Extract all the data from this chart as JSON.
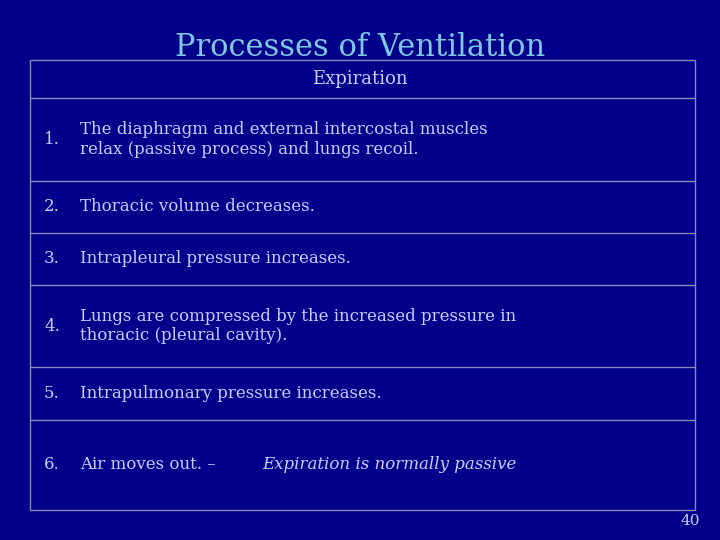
{
  "title": "Processes of Ventilation",
  "title_color": "#7EC8E3",
  "background_color": "#00008B",
  "table_border_color": "#8888BB",
  "text_color": "#CCCCFF",
  "header_text": "Expiration",
  "page_number": "40",
  "rows": [
    {
      "number": "1.",
      "text": "The diaphragm and external intercostal muscles\nrelax (passive process) and lungs recoil.",
      "italic_part": null
    },
    {
      "number": "2.",
      "text": "Thoracic volume decreases.",
      "italic_part": null
    },
    {
      "number": "3.",
      "text": "Intrapleural pressure increases.",
      "italic_part": null
    },
    {
      "number": "4.",
      "text": "Lungs are compressed by the increased pressure in\nthoracic (pleural cavity).",
      "italic_part": null
    },
    {
      "number": "5.",
      "text": "Intrapulmonary pressure increases.",
      "italic_part": null
    },
    {
      "number": "6.",
      "text": "Air moves out. – ",
      "italic_part": "Expiration is normally passive"
    }
  ],
  "title_fontsize": 22,
  "header_fontsize": 13,
  "body_fontsize": 12,
  "page_number_fontsize": 11
}
